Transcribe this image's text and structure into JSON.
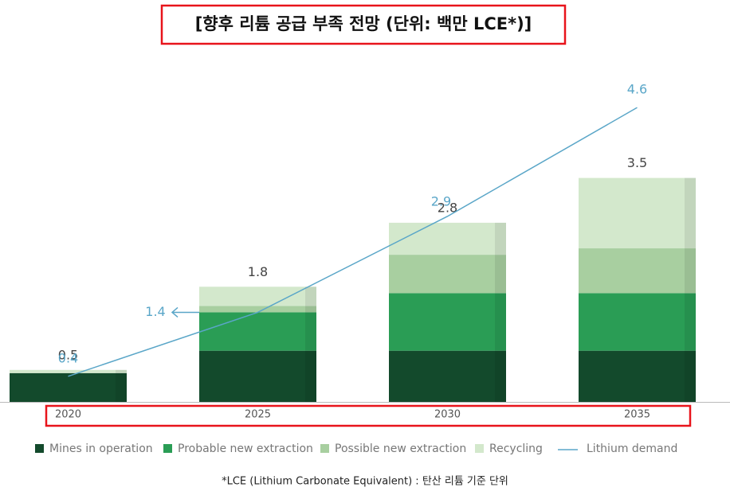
{
  "chart_data": {
    "type": "bar",
    "title": "[향후 리튬 공급 부족 전망 (단위: 백만 LCE*)]",
    "footnote": "*LCE (Lithium Carbonate Equivalent) : 탄산 리튬 기준 단위",
    "categories": [
      "2020",
      "2025",
      "2030",
      "2035"
    ],
    "stacked": true,
    "series": [
      {
        "name": "Mines in operation",
        "color": "#134a2c",
        "values": [
          0.45,
          0.8,
          0.8,
          0.8
        ]
      },
      {
        "name": "Probable new extraction",
        "color": "#2a9d55",
        "values": [
          0,
          0.6,
          0.9,
          0.9
        ]
      },
      {
        "name": "Possible new extraction",
        "color": "#a8cfa0",
        "values": [
          0,
          0.1,
          0.6,
          0.7
        ]
      },
      {
        "name": "Recycling",
        "color": "#d3e8cc",
        "values": [
          0.05,
          0.3,
          0.5,
          1.1
        ]
      }
    ],
    "totals": [
      0.5,
      1.8,
      2.8,
      3.5
    ],
    "line": {
      "type": "line",
      "name": "Lithium demand",
      "color": "#5aa6c8",
      "values": [
        0.4,
        1.4,
        2.9,
        4.6
      ]
    }
  }
}
